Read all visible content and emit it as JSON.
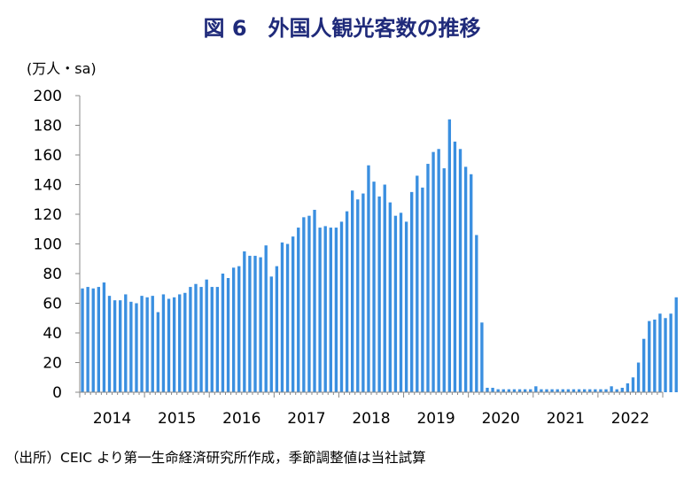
{
  "chart_data": {
    "type": "bar",
    "title": "図 6　外国人観光客数の推移",
    "unit_label": "(万人・sa)",
    "source": "（出所）CEIC より第一生命経済研究所作成，季節調整値は当社試算",
    "ylim": [
      0,
      200
    ],
    "y_ticks": [
      0,
      20,
      40,
      60,
      80,
      100,
      120,
      140,
      160,
      180,
      200
    ],
    "grid": false,
    "color": "#3a8fe0",
    "x_start": "2014-01",
    "x_tick_labels": [
      "2014",
      "2015",
      "2016",
      "2017",
      "2018",
      "2019",
      "2020",
      "2021",
      "2022"
    ],
    "values": [
      70,
      71,
      70,
      71,
      74,
      65,
      62,
      62,
      66,
      61,
      60,
      65,
      64,
      65,
      54,
      66,
      63,
      64,
      66,
      67,
      71,
      73,
      71,
      76,
      71,
      71,
      80,
      77,
      84,
      85,
      95,
      92,
      92,
      91,
      99,
      78,
      85,
      101,
      100,
      105,
      111,
      118,
      119,
      123,
      111,
      112,
      111,
      111,
      115,
      122,
      136,
      130,
      134,
      153,
      142,
      132,
      140,
      128,
      119,
      121,
      115,
      135,
      146,
      138,
      154,
      162,
      164,
      151,
      184,
      169,
      164,
      152,
      147,
      106,
      47,
      3,
      3,
      2,
      2,
      2,
      2,
      2,
      2,
      2,
      4,
      2,
      2,
      2,
      2,
      2,
      2,
      2,
      2,
      2,
      2,
      2,
      2,
      2,
      4,
      2,
      3,
      6,
      10,
      20,
      36,
      48,
      49,
      53,
      50,
      53,
      64
    ]
  }
}
